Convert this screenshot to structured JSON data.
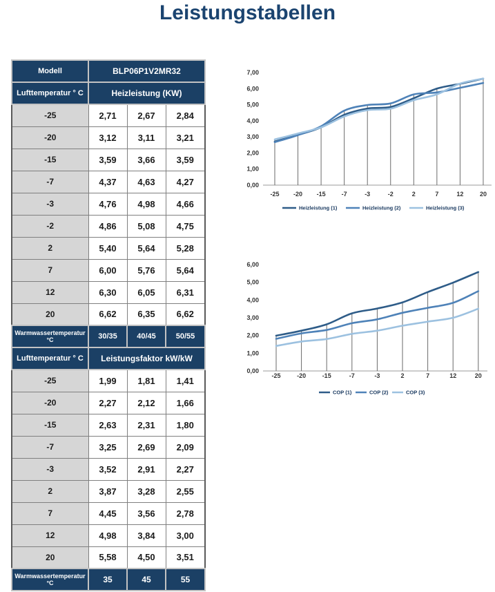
{
  "page": {
    "title": "Leistungstabellen"
  },
  "colors": {
    "header_bg": "#1B4065",
    "title_text": "#1B4470",
    "label_cell_bg": "#D6D6D6",
    "series1": "#2E5C88",
    "series2": "#4E82B8",
    "series3": "#9CC1E0"
  },
  "table": {
    "model_row": {
      "label": "Modell",
      "value": "BLP06P1V2MR32"
    },
    "heiz_header": {
      "label": "Lufttemperatur ° C",
      "value": "Heizleistung (KW)"
    },
    "heiz_rows": [
      [
        "-25",
        "2,71",
        "2,67",
        "2,84"
      ],
      [
        "-20",
        "3,12",
        "3,11",
        "3,21"
      ],
      [
        "-15",
        "3,59",
        "3,66",
        "3,59"
      ],
      [
        "-7",
        "4,37",
        "4,63",
        "4,27"
      ],
      [
        "-3",
        "4,76",
        "4,98",
        "4,66"
      ],
      [
        "-2",
        "4,86",
        "5,08",
        "4,75"
      ],
      [
        "2",
        "5,40",
        "5,64",
        "5,28"
      ],
      [
        "7",
        "6,00",
        "5,76",
        "5,64"
      ],
      [
        "12",
        "6,30",
        "6,05",
        "6,31"
      ],
      [
        "20",
        "6,62",
        "6,35",
        "6,62"
      ]
    ],
    "water_header": {
      "label": "Warmwassertemperatur °C",
      "values": [
        "30/35",
        "40/45",
        "50/55"
      ]
    },
    "cop_header": {
      "label": "Lufttemperatur ° C",
      "value": "Leistungsfaktor kW/kW"
    },
    "cop_rows": [
      [
        "-25",
        "1,99",
        "1,81",
        "1,41"
      ],
      [
        "-20",
        "2,27",
        "2,12",
        "1,66"
      ],
      [
        "-15",
        "2,63",
        "2,31",
        "1,80"
      ],
      [
        "-7",
        "3,25",
        "2,69",
        "2,09"
      ],
      [
        "-3",
        "3,52",
        "2,91",
        "2,27"
      ],
      [
        "2",
        "3,87",
        "3,28",
        "2,55"
      ],
      [
        "7",
        "4,45",
        "3,56",
        "2,78"
      ],
      [
        "12",
        "4,98",
        "3,84",
        "3,00"
      ],
      [
        "20",
        "5,58",
        "4,50",
        "3,51"
      ]
    ],
    "water_footer": {
      "label": "Warmwassertemperatur °C",
      "values": [
        "35",
        "45",
        "55"
      ]
    }
  },
  "chart_data": [
    {
      "type": "line",
      "title": "",
      "xlabel": "",
      "ylabel": "",
      "categories": [
        "-25",
        "-20",
        "-15",
        "-7",
        "-3",
        "-2",
        "2",
        "7",
        "12",
        "20"
      ],
      "series": [
        {
          "name": "Heizleistung (1)",
          "color": "#2E5C88",
          "values": [
            2.71,
            3.12,
            3.59,
            4.37,
            4.76,
            4.86,
            5.4,
            6.0,
            6.3,
            6.62
          ]
        },
        {
          "name": "Heizleistung (2)",
          "color": "#4E82B8",
          "values": [
            2.67,
            3.11,
            3.66,
            4.63,
            4.98,
            5.08,
            5.64,
            5.76,
            6.05,
            6.35
          ]
        },
        {
          "name": "Heizleistung (3)",
          "color": "#9CC1E0",
          "values": [
            2.84,
            3.21,
            3.59,
            4.27,
            4.66,
            4.75,
            5.28,
            5.64,
            6.31,
            6.62
          ]
        }
      ],
      "ylim": [
        0,
        7
      ],
      "ytick_step": 1,
      "grid": false,
      "drop_lines": true,
      "smooth": true,
      "legend_position": "bottom",
      "decimal_comma": true
    },
    {
      "type": "line",
      "title": "",
      "xlabel": "",
      "ylabel": "",
      "categories": [
        "-25",
        "-20",
        "-15",
        "-7",
        "-3",
        "2",
        "7",
        "12",
        "20"
      ],
      "series": [
        {
          "name": "COP (1)",
          "color": "#2E5C88",
          "values": [
            1.99,
            2.27,
            2.63,
            3.25,
            3.52,
            3.87,
            4.45,
            4.98,
            5.58
          ]
        },
        {
          "name": "COP (2)",
          "color": "#4E82B8",
          "values": [
            1.81,
            2.12,
            2.31,
            2.69,
            2.91,
            3.28,
            3.56,
            3.84,
            4.5
          ]
        },
        {
          "name": "COP (3)",
          "color": "#9CC1E0",
          "values": [
            1.41,
            1.66,
            1.8,
            2.09,
            2.27,
            2.55,
            2.78,
            3.0,
            3.51
          ]
        }
      ],
      "ylim": [
        0,
        6
      ],
      "ytick_step": 1,
      "grid": false,
      "drop_lines": true,
      "smooth": true,
      "legend_position": "bottom",
      "decimal_comma": true
    }
  ]
}
